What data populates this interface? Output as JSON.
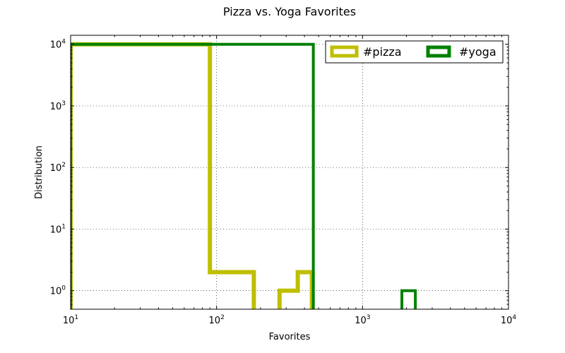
{
  "chart_data": {
    "type": "histogram-step",
    "title": "Pizza vs. Yoga Favorites",
    "xlabel": "Favorites",
    "ylabel": "Distribution",
    "xscale": "log",
    "yscale": "log",
    "xlim": [
      10,
      10000
    ],
    "ylim": [
      0.5,
      14000
    ],
    "x_ticks": [
      {
        "value": 10,
        "base": "10",
        "exp": "1"
      },
      {
        "value": 100,
        "base": "10",
        "exp": "2"
      },
      {
        "value": 1000,
        "base": "10",
        "exp": "3"
      },
      {
        "value": 10000,
        "base": "10",
        "exp": "4"
      }
    ],
    "y_ticks": [
      {
        "value": 1,
        "base": "10",
        "exp": "0"
      },
      {
        "value": 10,
        "base": "10",
        "exp": "1"
      },
      {
        "value": 100,
        "base": "10",
        "exp": "2"
      },
      {
        "value": 1000,
        "base": "10",
        "exp": "3"
      },
      {
        "value": 10000,
        "base": "10",
        "exp": "4"
      }
    ],
    "grid": true,
    "legend_position": "top-right",
    "series": [
      {
        "name": "#pizza",
        "color": "#bfbf00",
        "bins": [
          {
            "x0": 10,
            "x1": 90,
            "count": 10000
          },
          {
            "x0": 90,
            "x1": 180,
            "count": 2
          },
          {
            "x0": 180,
            "x1": 270,
            "count": 0
          },
          {
            "x0": 270,
            "x1": 360,
            "count": 1
          },
          {
            "x0": 360,
            "x1": 450,
            "count": 2
          }
        ]
      },
      {
        "name": "#yoga",
        "color": "#008000",
        "bins": [
          {
            "x0": 10,
            "x1": 460,
            "count": 10000
          },
          {
            "x0": 460,
            "x1": 1860,
            "count": 0
          },
          {
            "x0": 1860,
            "x1": 2300,
            "count": 1
          }
        ]
      }
    ]
  }
}
